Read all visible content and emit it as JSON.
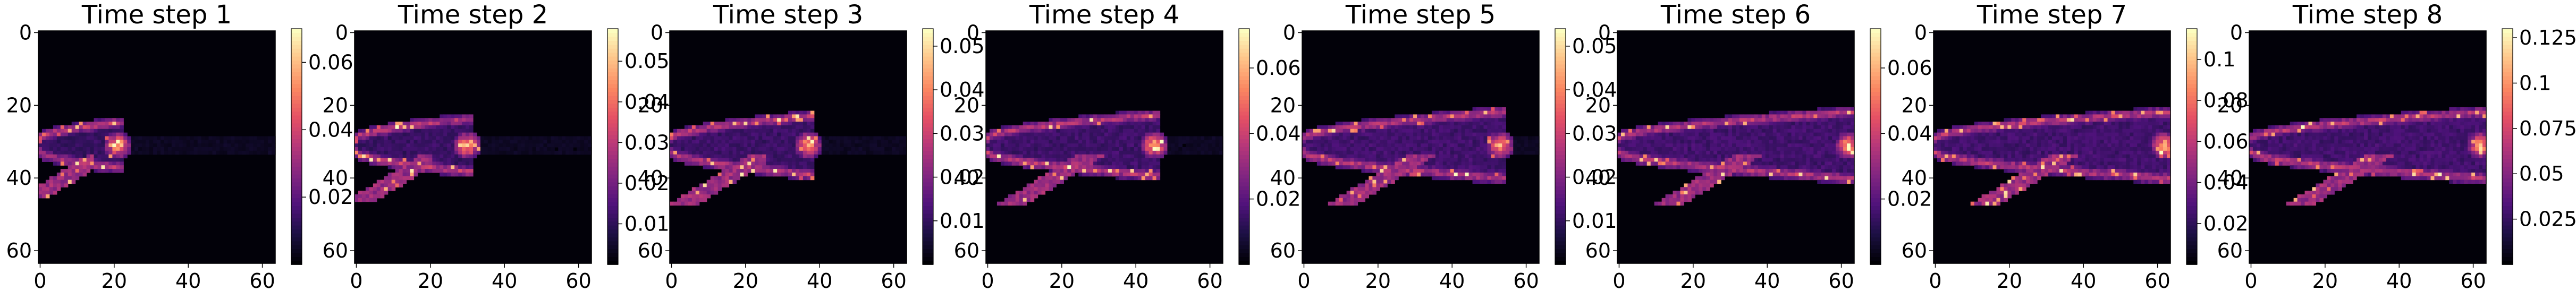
{
  "chart_data": {
    "type": "heatmap",
    "colormap": "magma",
    "panels": [
      {
        "title": "Time step 1",
        "x_ticks": [
          0,
          20,
          40,
          60
        ],
        "y_ticks": [
          0,
          20,
          40,
          60
        ],
        "colorbar_ticks": [
          0.02,
          0.04,
          0.06
        ],
        "value_range": [
          0.0,
          0.07
        ],
        "tip_x": 21,
        "spread": 0.6
      },
      {
        "title": "Time step 2",
        "x_ticks": [
          0,
          20,
          40,
          60
        ],
        "y_ticks": [
          0,
          20,
          40,
          60
        ],
        "colorbar_ticks": [
          0.01,
          0.02,
          0.03,
          0.04,
          0.05
        ],
        "value_range": [
          0.0,
          0.058
        ],
        "tip_x": 30,
        "spread": 0.75
      },
      {
        "title": "Time step 3",
        "x_ticks": [
          0,
          20,
          40,
          60
        ],
        "y_ticks": [
          0,
          20,
          40,
          60
        ],
        "colorbar_ticks": [
          0.01,
          0.02,
          0.03,
          0.04,
          0.05
        ],
        "value_range": [
          0.0,
          0.054
        ],
        "tip_x": 37,
        "spread": 0.85
      },
      {
        "title": "Time step 4",
        "x_ticks": [
          0,
          20,
          40,
          60
        ],
        "y_ticks": [
          0,
          20,
          40,
          60
        ],
        "colorbar_ticks": [
          0.02,
          0.04,
          0.06
        ],
        "value_range": [
          0.0,
          0.072
        ],
        "tip_x": 45,
        "spread": 0.9
      },
      {
        "title": "Time step 5",
        "x_ticks": [
          0,
          20,
          40,
          60
        ],
        "y_ticks": [
          0,
          20,
          40,
          60
        ],
        "colorbar_ticks": [
          0.01,
          0.02,
          0.03,
          0.04,
          0.05
        ],
        "value_range": [
          0.0,
          0.054
        ],
        "tip_x": 53,
        "spread": 1.0
      },
      {
        "title": "Time step 6",
        "x_ticks": [
          0,
          20,
          40,
          60
        ],
        "y_ticks": [
          0,
          20,
          40,
          60
        ],
        "colorbar_ticks": [
          0.02,
          0.04,
          0.06
        ],
        "value_range": [
          0.0,
          0.072
        ],
        "tip_x": 62,
        "spread": 1.0
      },
      {
        "title": "Time step 7",
        "x_ticks": [
          0,
          20,
          40,
          60
        ],
        "y_ticks": [
          0,
          20,
          40,
          60
        ],
        "colorbar_ticks": [
          0.02,
          0.04,
          0.06,
          0.08,
          0.1
        ],
        "value_range": [
          0.0,
          0.115
        ],
        "tip_x": 62,
        "spread": 1.0
      },
      {
        "title": "Time step 8",
        "x_ticks": [
          0,
          20,
          40,
          60
        ],
        "y_ticks": [
          0,
          20,
          40,
          60
        ],
        "colorbar_ticks": [
          0.025,
          0.05,
          0.075,
          0.1,
          0.125
        ],
        "value_range": [
          0.0,
          0.13
        ],
        "tip_x": 62,
        "spread": 1.0
      }
    ]
  }
}
